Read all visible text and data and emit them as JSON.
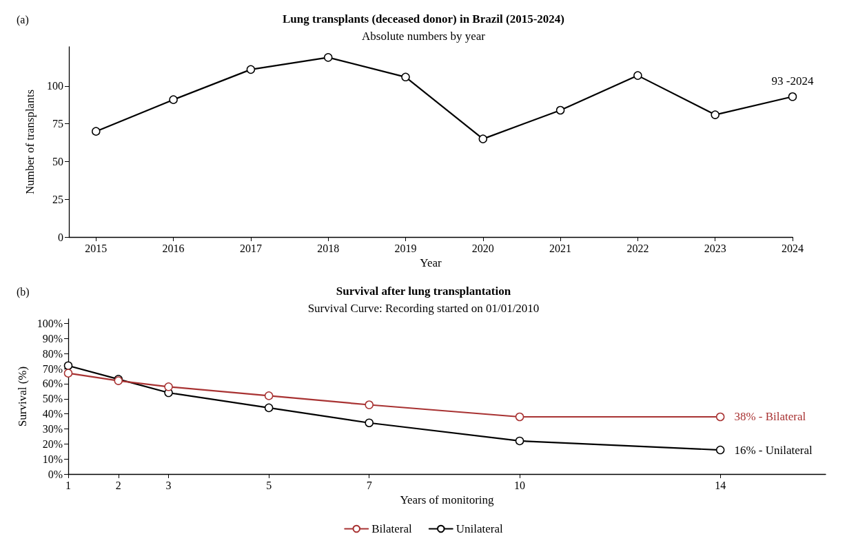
{
  "chart_data": [
    {
      "type": "line",
      "title": "Lung transplants (deceased donor) in Brazil (2015-2024)",
      "subtitle": "Absolute numbers by year",
      "xlabel": "Year",
      "ylabel": "Number of transplants",
      "annotations": [
        "(a)"
      ],
      "x": [
        2015,
        2016,
        2017,
        2018,
        2019,
        2020,
        2021,
        2022,
        2023,
        2024
      ],
      "series": [
        {
          "color": "#000000",
          "values": [
            70,
            91,
            111,
            119,
            106,
            65,
            84,
            107,
            81,
            93
          ],
          "value_labels": [
            null,
            null,
            null,
            null,
            null,
            null,
            null,
            null,
            null,
            "93 -2024"
          ]
        }
      ],
      "xlim": [
        2014.65,
        2024
      ],
      "xticks": [
        2015,
        2016,
        2017,
        2018,
        2019,
        2020,
        2021,
        2022,
        2023,
        2024
      ],
      "ylim": [
        0,
        126
      ],
      "yticks": [
        0,
        25,
        50,
        75,
        100
      ],
      "grid": false,
      "legend": false,
      "marker": "circle",
      "line_style": "solid"
    },
    {
      "type": "line",
      "title": "Survival after lung transplantation",
      "subtitle": "Survival Curve: Recording started on 01/01/2010",
      "xlabel": "Years of monitoring",
      "ylabel": "Survival (%)",
      "annotations": [
        "(b)"
      ],
      "x": [
        1,
        2,
        3,
        5,
        7,
        10,
        14
      ],
      "series": [
        {
          "name": "Bilateral",
          "color": "#a83232",
          "values": [
            67,
            62,
            58,
            52,
            46,
            38,
            38
          ],
          "value_labels": [
            null,
            null,
            null,
            null,
            null,
            null,
            "38% - Bilateral"
          ]
        },
        {
          "name": "Unilateral",
          "color": "#000000",
          "values": [
            72,
            63,
            54,
            44,
            34,
            22,
            16
          ],
          "value_labels": [
            null,
            null,
            null,
            null,
            null,
            null,
            "16% - Unilateral"
          ]
        }
      ],
      "xlim": [
        1,
        16.1
      ],
      "xticks": [
        1,
        2,
        3,
        5,
        7,
        10,
        14
      ],
      "ylim": [
        0,
        103
      ],
      "yticks": [
        {
          "value": 0,
          "label": "0%"
        },
        {
          "value": 10,
          "label": "10%"
        },
        {
          "value": 20,
          "label": "20%"
        },
        {
          "value": 30,
          "label": "30%"
        },
        {
          "value": 40,
          "label": "40%"
        },
        {
          "value": 50,
          "label": "50%"
        },
        {
          "value": 60,
          "label": "60%"
        },
        {
          "value": 70,
          "label": "70%"
        },
        {
          "value": 80,
          "label": "80%"
        },
        {
          "value": 90,
          "label": "90%"
        },
        {
          "value": 100,
          "label": "100%"
        }
      ],
      "grid": false,
      "legend": "bottom",
      "marker": "circle",
      "line_style": "solid"
    }
  ]
}
